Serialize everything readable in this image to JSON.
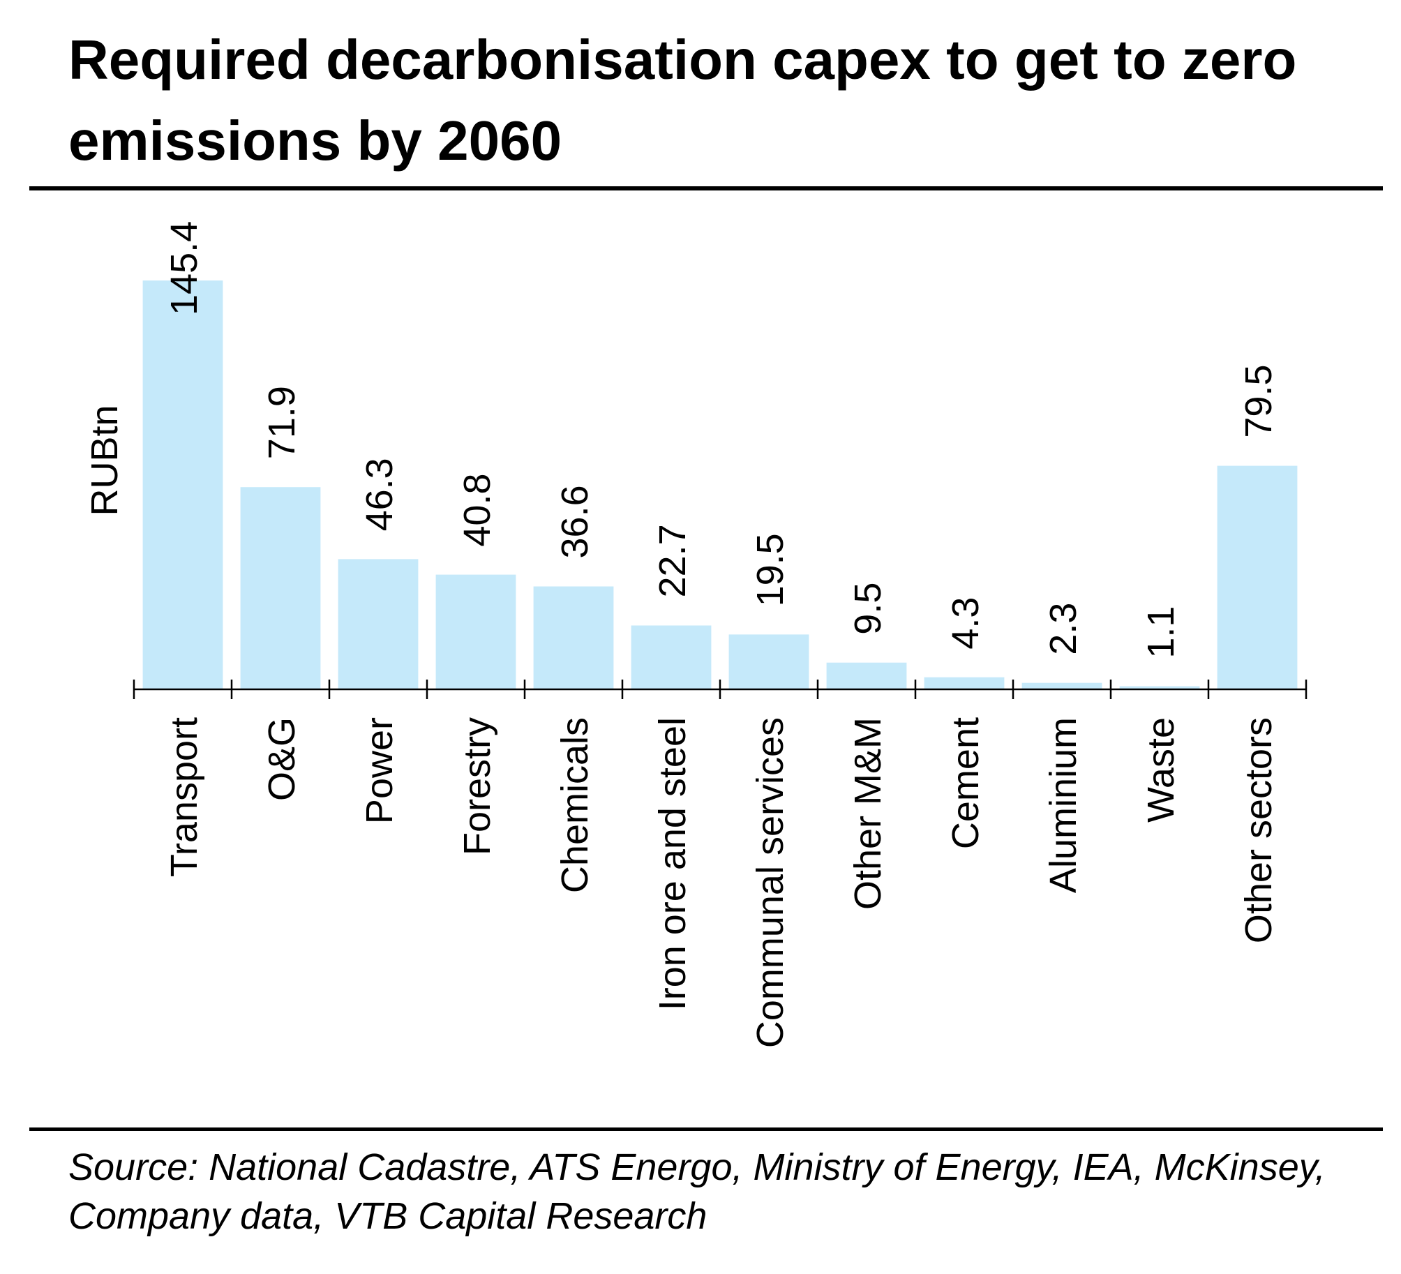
{
  "title": "Required decarbonisation capex to get to zero emissions by 2060",
  "source": "Source: National Cadastre, ATS Energo, Ministry of Energy, IEA, McKinsey, Company data, VTB Capital Research",
  "colors": {
    "bar": "#c5e9fa",
    "axis": "#000000",
    "text": "#000000"
  },
  "chart_data": {
    "type": "bar",
    "title": "Required decarbonisation capex to get to zero emissions by 2060",
    "ylabel": "RUBtn",
    "xlabel": "",
    "categories": [
      "Transport",
      "O&G",
      "Power",
      "Forestry",
      "Chemicals",
      "Iron ore and steel",
      "Communal services",
      "Other M&M",
      "Cement",
      "Aluminium",
      "Waste",
      "Other sectors"
    ],
    "values": [
      145.4,
      71.9,
      46.3,
      40.8,
      36.6,
      22.7,
      19.5,
      9.5,
      4.3,
      2.3,
      1.1,
      79.5
    ],
    "data_labels": [
      "145.4",
      "71.9",
      "46.3",
      "40.8",
      "36.6",
      "22.7",
      "19.5",
      "9.5",
      "4.3",
      "2.3",
      "1.1",
      "79.5"
    ],
    "ylim": [
      0,
      145.4
    ],
    "grid": false,
    "legend": "none"
  }
}
